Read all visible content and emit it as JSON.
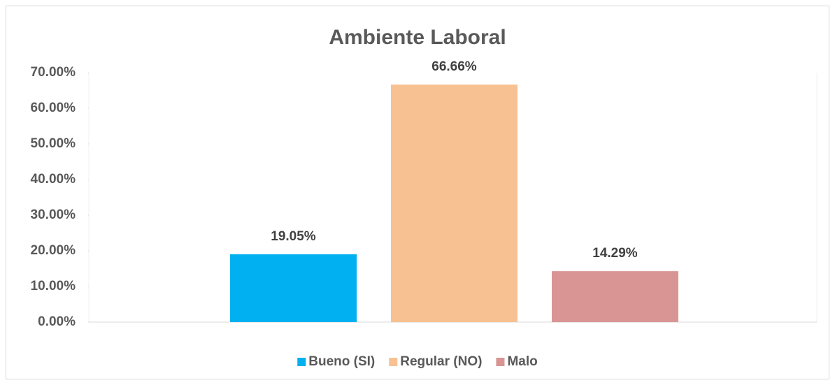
{
  "chart_data": {
    "type": "bar",
    "title": "Ambiente Laboral",
    "categories": [
      null
    ],
    "series": [
      {
        "name": "Bueno (SI)",
        "color": "#00b0f0",
        "values": [
          19.05
        ],
        "value_labels": [
          "19.05%"
        ]
      },
      {
        "name": "Regular (NO)",
        "color": "#f8c191",
        "values": [
          66.66
        ],
        "value_labels": [
          "66.66%"
        ]
      },
      {
        "name": "Malo",
        "color": "#d99594",
        "values": [
          14.29
        ],
        "value_labels": [
          "14.29%"
        ]
      }
    ],
    "ylim": [
      0,
      70
    ],
    "yticks": [
      {
        "value": 0,
        "label": "0.00%"
      },
      {
        "value": 10,
        "label": "10.00%"
      },
      {
        "value": 20,
        "label": "20.00%"
      },
      {
        "value": 30,
        "label": "30.00%"
      },
      {
        "value": 40,
        "label": "40.00%"
      },
      {
        "value": 50,
        "label": "50.00%"
      },
      {
        "value": 60,
        "label": "60.00%"
      },
      {
        "value": 70,
        "label": "70.00%"
      }
    ],
    "grid": false,
    "legend": "bottom"
  }
}
